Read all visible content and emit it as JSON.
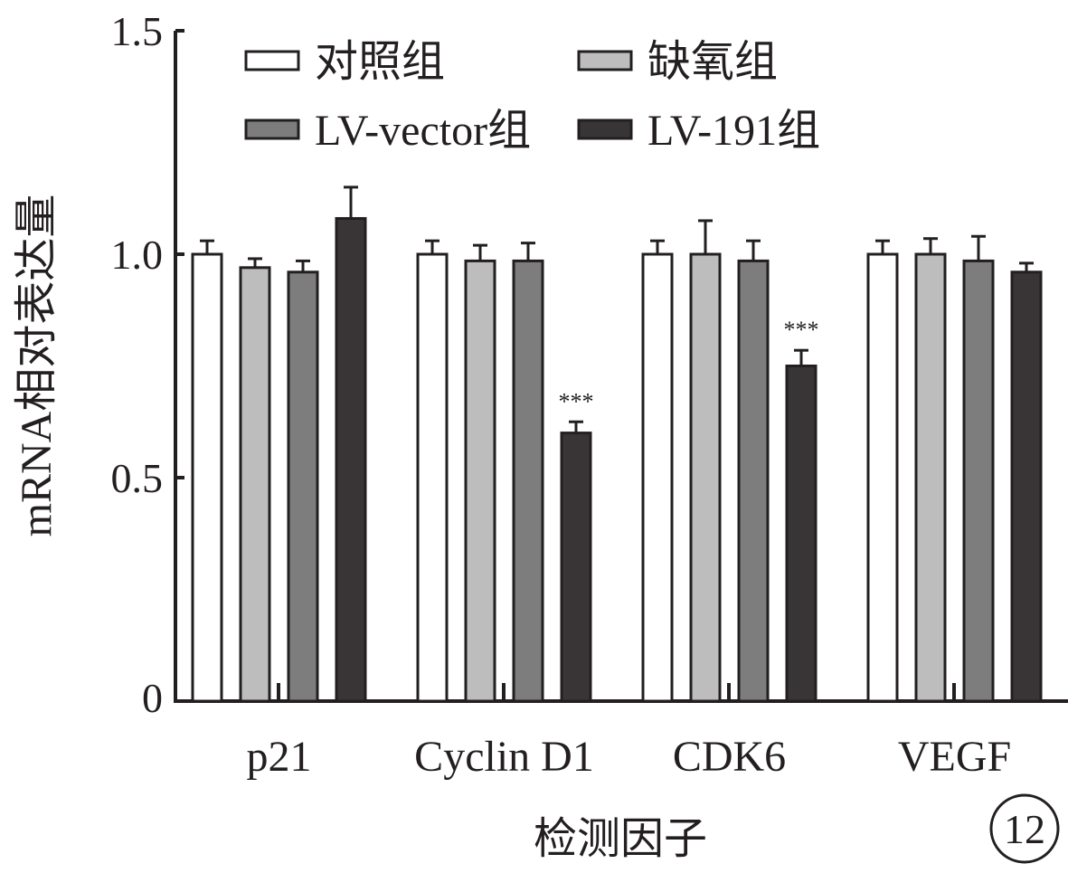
{
  "chart_data": {
    "type": "bar",
    "title": "",
    "xlabel": "检测因子",
    "ylabel": "mRNA相对表达量",
    "ylim": [
      0,
      1.5
    ],
    "yticks": [
      {
        "value": 0,
        "label": "0"
      },
      {
        "value": 0.5,
        "label": "0.5"
      },
      {
        "value": 1.0,
        "label": "1.0"
      },
      {
        "value": 1.5,
        "label": "1.5"
      }
    ],
    "categories": [
      "p21",
      "Cyclin D1",
      "CDK6",
      "VEGF"
    ],
    "series": [
      {
        "name": "对照组",
        "color": "#ffffff",
        "values": [
          1.0,
          1.0,
          1.0,
          1.0
        ],
        "errors": [
          0.03,
          0.03,
          0.03,
          0.03
        ]
      },
      {
        "name": "缺氧组",
        "color": "#bdbdbd",
        "values": [
          0.97,
          0.985,
          1.0,
          1.0
        ],
        "errors": [
          0.02,
          0.035,
          0.075,
          0.035
        ]
      },
      {
        "name": "LV-vector组",
        "color": "#7d7d7d",
        "values": [
          0.96,
          0.985,
          0.985,
          0.985
        ],
        "errors": [
          0.025,
          0.04,
          0.045,
          0.055
        ]
      },
      {
        "name": "LV-191组",
        "color": "#383536",
        "values": [
          1.08,
          0.6,
          0.75,
          0.96
        ],
        "errors": [
          0.07,
          0.025,
          0.035,
          0.02
        ]
      }
    ],
    "annotations": [
      {
        "category": "Cyclin D1",
        "series": "LV-191组",
        "text": "***"
      },
      {
        "category": "CDK6",
        "series": "LV-191组",
        "text": "***"
      }
    ],
    "legend_position": "top",
    "grid": false,
    "panel_label": "12"
  }
}
